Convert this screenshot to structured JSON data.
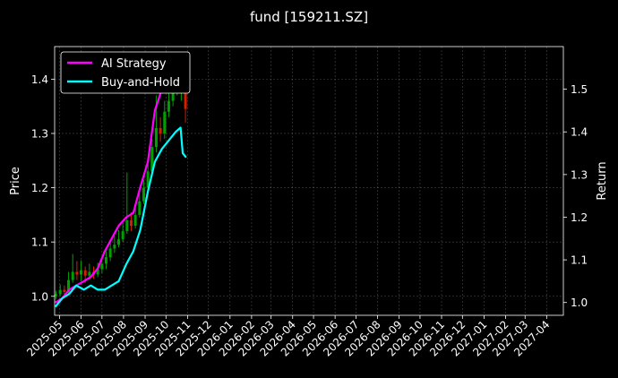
{
  "chart_data": {
    "type": "line",
    "title": "fund [159211.SZ]",
    "ylabel_left": "Price",
    "ylabel_right": "Return",
    "xlabel": "",
    "ylim_left": [
      0.965,
      1.46
    ],
    "ylim_right": [
      0.97,
      1.6
    ],
    "xlim": [
      "2025-04-24",
      "2027-04-25"
    ],
    "grid": true,
    "legend_position": "top-left",
    "x_ticks": [
      "2025-05",
      "2025-06",
      "2025-07",
      "2025-08",
      "2025-09",
      "2025-10",
      "2025-11",
      "2025-12",
      "2026-01",
      "2026-02",
      "2026-03",
      "2026-04",
      "2026-05",
      "2026-06",
      "2026-07",
      "2026-08",
      "2026-09",
      "2026-10",
      "2026-11",
      "2026-12",
      "2027-01",
      "2027-02",
      "2027-03",
      "2027-04"
    ],
    "y_ticks_left": [
      "1.0",
      "1.1",
      "1.2",
      "1.3",
      "1.4"
    ],
    "y_ticks_right": [
      "1.0",
      "1.1",
      "1.2",
      "1.3",
      "1.4",
      "1.5"
    ],
    "y_tick_values_left": [
      1.0,
      1.1,
      1.2,
      1.3,
      1.4
    ],
    "y_tick_values_right": [
      1.0,
      1.1,
      1.2,
      1.3,
      1.4,
      1.5
    ],
    "series": [
      {
        "name": "AI Strategy",
        "axis": "right",
        "color": "#ff00ff",
        "x": [
          "2025-04-25",
          "2025-05-05",
          "2025-05-15",
          "2025-05-25",
          "2025-06-05",
          "2025-06-15",
          "2025-06-25",
          "2025-07-05",
          "2025-07-15",
          "2025-07-25",
          "2025-08-05",
          "2025-08-15",
          "2025-08-25",
          "2025-09-05",
          "2025-09-15",
          "2025-09-25",
          "2025-10-05",
          "2025-10-15",
          "2025-10-25",
          "2025-10-30"
        ],
        "values": [
          1.0,
          1.01,
          1.03,
          1.04,
          1.05,
          1.06,
          1.08,
          1.12,
          1.15,
          1.18,
          1.2,
          1.21,
          1.27,
          1.33,
          1.45,
          1.5,
          1.51,
          1.52,
          1.55,
          1.57
        ]
      },
      {
        "name": "Buy-and-Hold",
        "axis": "right",
        "color": "#00ffff",
        "x": [
          "2025-04-25",
          "2025-05-05",
          "2025-05-15",
          "2025-05-25",
          "2025-06-05",
          "2025-06-15",
          "2025-06-25",
          "2025-07-05",
          "2025-07-15",
          "2025-07-25",
          "2025-08-05",
          "2025-08-15",
          "2025-08-25",
          "2025-09-05",
          "2025-09-15",
          "2025-09-25",
          "2025-10-05",
          "2025-10-15",
          "2025-10-22",
          "2025-10-25",
          "2025-10-30"
        ],
        "values": [
          0.99,
          1.01,
          1.02,
          1.04,
          1.03,
          1.04,
          1.03,
          1.03,
          1.04,
          1.05,
          1.09,
          1.12,
          1.17,
          1.26,
          1.33,
          1.36,
          1.38,
          1.4,
          1.41,
          1.35,
          1.34
        ]
      }
    ],
    "price_candles": {
      "axis": "left",
      "up_color": "#00a000",
      "down_color": "#d02000",
      "items": [
        {
          "d": "2025-04-26",
          "o": 1.0,
          "c": 1.004,
          "h": 1.01,
          "l": 0.995
        },
        {
          "d": "2025-05-02",
          "o": 1.004,
          "c": 1.012,
          "h": 1.022,
          "l": 1.0
        },
        {
          "d": "2025-05-08",
          "o": 1.012,
          "c": 1.008,
          "h": 1.02,
          "l": 1.002
        },
        {
          "d": "2025-05-14",
          "o": 1.008,
          "c": 1.03,
          "h": 1.045,
          "l": 1.005
        },
        {
          "d": "2025-05-20",
          "o": 1.03,
          "c": 1.045,
          "h": 1.078,
          "l": 1.025
        },
        {
          "d": "2025-05-26",
          "o": 1.045,
          "c": 1.04,
          "h": 1.065,
          "l": 1.03
        },
        {
          "d": "2025-06-01",
          "o": 1.04,
          "c": 1.048,
          "h": 1.066,
          "l": 1.028
        },
        {
          "d": "2025-06-07",
          "o": 1.048,
          "c": 1.038,
          "h": 1.055,
          "l": 1.025
        },
        {
          "d": "2025-06-13",
          "o": 1.038,
          "c": 1.045,
          "h": 1.06,
          "l": 1.03
        },
        {
          "d": "2025-06-19",
          "o": 1.045,
          "c": 1.04,
          "h": 1.055,
          "l": 1.032
        },
        {
          "d": "2025-06-25",
          "o": 1.04,
          "c": 1.05,
          "h": 1.062,
          "l": 1.035
        },
        {
          "d": "2025-07-01",
          "o": 1.05,
          "c": 1.06,
          "h": 1.072,
          "l": 1.042
        },
        {
          "d": "2025-07-07",
          "o": 1.06,
          "c": 1.072,
          "h": 1.085,
          "l": 1.05
        },
        {
          "d": "2025-07-13",
          "o": 1.072,
          "c": 1.088,
          "h": 1.1,
          "l": 1.065
        },
        {
          "d": "2025-07-19",
          "o": 1.088,
          "c": 1.095,
          "h": 1.112,
          "l": 1.08
        },
        {
          "d": "2025-07-25",
          "o": 1.095,
          "c": 1.105,
          "h": 1.122,
          "l": 1.09
        },
        {
          "d": "2025-07-31",
          "o": 1.105,
          "c": 1.12,
          "h": 1.135,
          "l": 1.1
        },
        {
          "d": "2025-08-06",
          "o": 1.12,
          "c": 1.14,
          "h": 1.228,
          "l": 1.115
        },
        {
          "d": "2025-08-12",
          "o": 1.14,
          "c": 1.13,
          "h": 1.155,
          "l": 1.12
        },
        {
          "d": "2025-08-18",
          "o": 1.13,
          "c": 1.15,
          "h": 1.165,
          "l": 1.125
        },
        {
          "d": "2025-08-24",
          "o": 1.15,
          "c": 1.175,
          "h": 1.19,
          "l": 1.145
        },
        {
          "d": "2025-08-30",
          "o": 1.175,
          "c": 1.2,
          "h": 1.215,
          "l": 1.17
        },
        {
          "d": "2025-09-05",
          "o": 1.2,
          "c": 1.23,
          "h": 1.25,
          "l": 1.195
        },
        {
          "d": "2025-09-11",
          "o": 1.23,
          "c": 1.275,
          "h": 1.29,
          "l": 1.22
        },
        {
          "d": "2025-09-17",
          "o": 1.275,
          "c": 1.31,
          "h": 1.37,
          "l": 1.265
        },
        {
          "d": "2025-09-23",
          "o": 1.31,
          "c": 1.3,
          "h": 1.33,
          "l": 1.285
        },
        {
          "d": "2025-09-29",
          "o": 1.3,
          "c": 1.34,
          "h": 1.36,
          "l": 1.29
        },
        {
          "d": "2025-10-05",
          "o": 1.34,
          "c": 1.36,
          "h": 1.385,
          "l": 1.33
        },
        {
          "d": "2025-10-11",
          "o": 1.36,
          "c": 1.38,
          "h": 1.405,
          "l": 1.35
        },
        {
          "d": "2025-10-17",
          "o": 1.38,
          "c": 1.395,
          "h": 1.42,
          "l": 1.37
        },
        {
          "d": "2025-10-23",
          "o": 1.395,
          "c": 1.405,
          "h": 1.43,
          "l": 1.36
        },
        {
          "d": "2025-10-29",
          "o": 1.405,
          "c": 1.345,
          "h": 1.44,
          "l": 1.32
        }
      ]
    }
  }
}
